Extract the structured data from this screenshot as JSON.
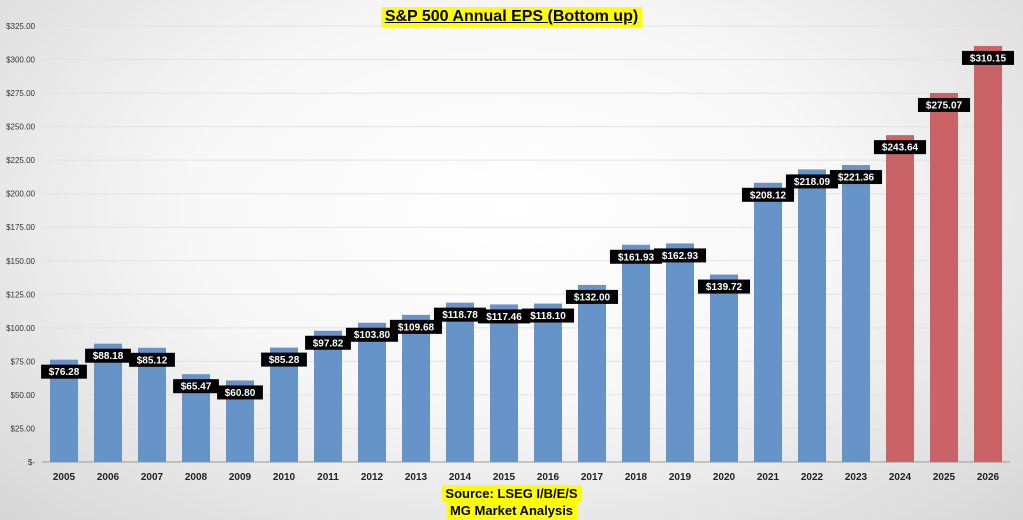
{
  "chart_data": {
    "type": "bar",
    "title": "S&P 500 Annual EPS (Bottom up)",
    "categories": [
      "2005",
      "2006",
      "2007",
      "2008",
      "2009",
      "2010",
      "2011",
      "2012",
      "2013",
      "2014",
      "2015",
      "2016",
      "2017",
      "2018",
      "2019",
      "2020",
      "2021",
      "2022",
      "2023",
      "2024",
      "2025",
      "2026"
    ],
    "values": [
      76.28,
      88.18,
      85.12,
      65.47,
      60.8,
      85.28,
      97.82,
      103.8,
      109.68,
      118.78,
      117.46,
      118.1,
      132.0,
      161.93,
      162.93,
      139.72,
      208.12,
      218.09,
      221.36,
      243.64,
      275.07,
      310.15
    ],
    "data_labels": [
      "$76.28",
      "$88.18",
      "$85.12",
      "$65.47",
      "$60.80",
      "$85.28",
      "$97.82",
      "$103.80",
      "$109.68",
      "$118.78",
      "$117.46",
      "$118.10",
      "$132.00",
      "$161.93",
      "$162.93",
      "$139.72",
      "$208.12",
      "$218.09",
      "$221.36",
      "$243.64",
      "$275.07",
      "$310.15"
    ],
    "estimate_from_index": 19,
    "y_ticks": [
      0,
      25,
      50,
      75,
      100,
      125,
      150,
      175,
      200,
      225,
      250,
      275,
      300,
      325
    ],
    "y_tick_labels": [
      "$-",
      "$25.00",
      "$50.00",
      "$75.00",
      "$100.00",
      "$125.00",
      "$150.00",
      "$175.00",
      "$200.00",
      "$225.00",
      "$250.00",
      "$275.00",
      "$300.00",
      "$325.00"
    ],
    "ylim": [
      0,
      325
    ],
    "xlabel": "",
    "ylabel": "",
    "colors": {
      "actual": "#6794c8",
      "estimate": "#c96365",
      "label_bg": "#000000",
      "label_text": "#ffffff",
      "highlight": "#ffff00"
    }
  },
  "footer": {
    "source": "Source: LSEG I/B/E/S",
    "credit": "MG Market Analysis"
  }
}
